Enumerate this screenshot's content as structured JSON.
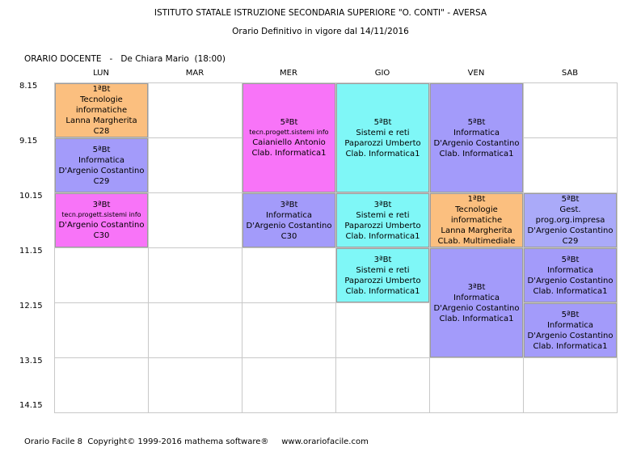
{
  "header": {
    "line1": "ISTITUTO STATALE ISTRUZIONE SECONDARIA SUPERIORE \"O. CONTI\" - AVERSA",
    "line2": "Orario Definitivo in vigore dal 14/11/2016"
  },
  "subtitle": "ORARIO DOCENTE   -   De Chiara Mario  (18:00)",
  "days": [
    "LUN",
    "MAR",
    "MER",
    "GIO",
    "VEN",
    "SAB"
  ],
  "times": [
    "8.15",
    "9.15",
    "10.15",
    "11.15",
    "12.15",
    "13.15",
    "14.15"
  ],
  "colors": {
    "orange": "#fbbf7f",
    "purple": "#a39bfa",
    "magenta": "#f874f8",
    "cyan": "#7ff7f7",
    "lavender": "#aaaaf9"
  },
  "lessons": [
    {
      "day": 0,
      "start": 0,
      "span": 1,
      "color": "orange",
      "lines": [
        "1ªBt",
        "Tecnologie informatiche",
        "Lanna Margherita",
        "C28"
      ]
    },
    {
      "day": 0,
      "start": 1,
      "span": 1,
      "color": "purple",
      "lines": [
        "5ªBt",
        "Informatica",
        "D'Argenio Costantino",
        "C29"
      ]
    },
    {
      "day": 0,
      "start": 2,
      "span": 1,
      "color": "magenta",
      "small": 1,
      "lines": [
        "3ªBt",
        "tecn.progett.sistemi info",
        "D'Argenio Costantino",
        "C30"
      ]
    },
    {
      "day": 2,
      "start": 0,
      "span": 2,
      "color": "magenta",
      "small": 1,
      "lines": [
        "5ªBt",
        "tecn.progett.sistemi info",
        "Caianiello Antonio",
        "Clab. Informatica1"
      ]
    },
    {
      "day": 2,
      "start": 2,
      "span": 1,
      "color": "purple",
      "lines": [
        "3ªBt",
        "Informatica",
        "D'Argenio Costantino",
        "C30"
      ]
    },
    {
      "day": 3,
      "start": 0,
      "span": 2,
      "color": "cyan",
      "lines": [
        "5ªBt",
        "Sistemi e reti",
        "Paparozzi Umberto",
        "Clab. Informatica1"
      ]
    },
    {
      "day": 3,
      "start": 2,
      "span": 1,
      "color": "cyan",
      "lines": [
        "3ªBt",
        "Sistemi e reti",
        "Paparozzi Umberto",
        "Clab. Informatica1"
      ]
    },
    {
      "day": 3,
      "start": 3,
      "span": 1,
      "color": "cyan",
      "lines": [
        "3ªBt",
        "Sistemi e reti",
        "Paparozzi Umberto",
        "Clab. Informatica1"
      ]
    },
    {
      "day": 4,
      "start": 0,
      "span": 2,
      "color": "purple",
      "lines": [
        "5ªBt",
        "Informatica",
        "D'Argenio Costantino",
        "Clab. Informatica1"
      ]
    },
    {
      "day": 4,
      "start": 2,
      "span": 1,
      "color": "orange",
      "lines": [
        "1ªBt",
        "Tecnologie informatiche",
        "Lanna Margherita",
        "CLab. Multimediale"
      ]
    },
    {
      "day": 4,
      "start": 3,
      "span": 2,
      "color": "purple",
      "lines": [
        "3ªBt",
        "Informatica",
        "D'Argenio Costantino",
        "Clab. Informatica1"
      ]
    },
    {
      "day": 5,
      "start": 2,
      "span": 1,
      "color": "lavender",
      "lines": [
        "5ªBt",
        "Gest. prog.org.impresa",
        "D'Argenio Costantino",
        "C29"
      ]
    },
    {
      "day": 5,
      "start": 3,
      "span": 1,
      "color": "purple",
      "lines": [
        "5ªBt",
        "Informatica",
        "D'Argenio Costantino",
        "Clab. Informatica1"
      ]
    },
    {
      "day": 5,
      "start": 4,
      "span": 1,
      "color": "purple",
      "lines": [
        "5ªBt",
        "Informatica",
        "D'Argenio Costantino",
        "Clab. Informatica1"
      ]
    }
  ],
  "footer": "Orario Facile 8  Copyright© 1999-2016 mathema software®     www.orariofacile.com"
}
